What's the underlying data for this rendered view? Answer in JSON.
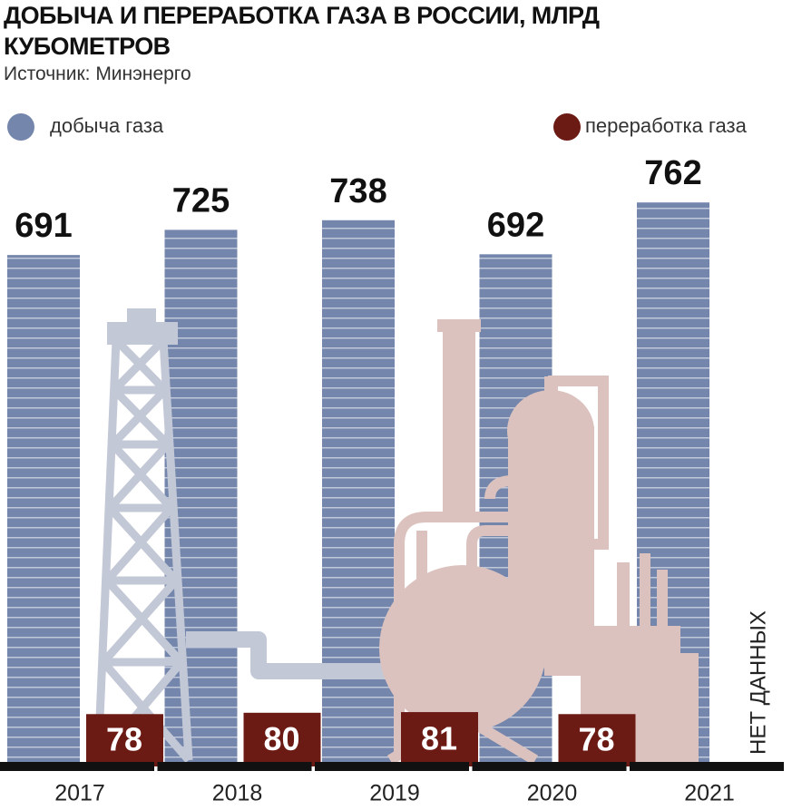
{
  "chart_data": {
    "type": "bar",
    "title": "ДОБЫЧА И ПЕРЕРАБОТКА ГАЗА В РОССИИ, МЛРД КУБОМЕТРОВ",
    "subtitle": "Источник: Минэнерго",
    "categories": [
      "2017",
      "2018",
      "2019",
      "2020",
      "2021"
    ],
    "series": [
      {
        "name": "добыча газа",
        "color": "#7486ac",
        "values": [
          691,
          725,
          738,
          692,
          762
        ]
      },
      {
        "name": "переработка газа",
        "color": "#6b1a14",
        "values": [
          78,
          80,
          81,
          78,
          null
        ]
      }
    ],
    "annotation": "НЕТ ДАННЫХ"
  }
}
